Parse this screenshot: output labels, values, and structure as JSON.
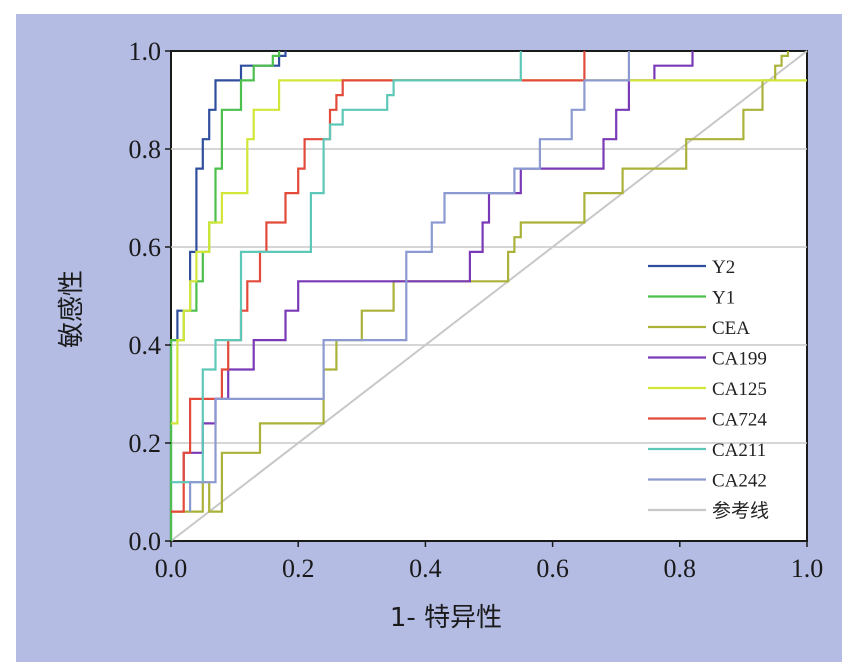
{
  "chart_data": {
    "type": "line",
    "xlabel": "1- 特异性",
    "ylabel": "敏感性",
    "xlim": [
      0,
      1
    ],
    "ylim": [
      0,
      1
    ],
    "xticks": [
      "0.0",
      "0.2",
      "0.4",
      "0.6",
      "0.8",
      "1.0"
    ],
    "yticks": [
      "0.0",
      "0.2",
      "0.4",
      "0.6",
      "0.8",
      "1.0"
    ],
    "grid": "horizontal",
    "legend_position": "right",
    "series": [
      {
        "name": "Y2",
        "color": "#2f4f9e",
        "x": [
          0,
          0,
          0.01,
          0.01,
          0.03,
          0.03,
          0.04,
          0.04,
          0.05,
          0.05,
          0.06,
          0.06,
          0.07,
          0.07,
          0.11,
          0.11,
          0.17,
          0.17,
          0.18,
          0.18
        ],
        "y": [
          0,
          0.41,
          0.41,
          0.47,
          0.47,
          0.59,
          0.59,
          0.76,
          0.76,
          0.82,
          0.82,
          0.88,
          0.88,
          0.94,
          0.94,
          0.97,
          0.97,
          0.99,
          0.99,
          1.0
        ]
      },
      {
        "name": "Y1",
        "color": "#4cbf4c",
        "x": [
          0,
          0,
          0.02,
          0.02,
          0.04,
          0.04,
          0.05,
          0.05,
          0.06,
          0.06,
          0.07,
          0.07,
          0.08,
          0.08,
          0.11,
          0.11,
          0.13,
          0.13,
          0.16,
          0.16,
          0.17,
          0.17
        ],
        "y": [
          0,
          0.41,
          0.41,
          0.47,
          0.47,
          0.53,
          0.53,
          0.59,
          0.59,
          0.65,
          0.65,
          0.76,
          0.76,
          0.88,
          0.88,
          0.94,
          0.94,
          0.97,
          0.97,
          0.99,
          0.99,
          1.0
        ]
      },
      {
        "name": "CEA",
        "color": "#aab23a",
        "x": [
          0,
          0.05,
          0.05,
          0.06,
          0.06,
          0.08,
          0.08,
          0.14,
          0.14,
          0.24,
          0.24,
          0.26,
          0.26,
          0.3,
          0.3,
          0.35,
          0.35,
          0.53,
          0.53,
          0.54,
          0.54,
          0.55,
          0.55,
          0.65,
          0.65,
          0.71,
          0.71,
          0.81,
          0.81,
          0.9,
          0.9,
          0.93,
          0.93,
          0.95,
          0.95,
          0.96,
          0.96,
          0.97,
          0.97
        ],
        "y": [
          0.06,
          0.06,
          0.12,
          0.12,
          0.06,
          0.06,
          0.18,
          0.18,
          0.24,
          0.24,
          0.35,
          0.35,
          0.41,
          0.41,
          0.47,
          0.47,
          0.53,
          0.53,
          0.59,
          0.59,
          0.62,
          0.62,
          0.65,
          0.65,
          0.71,
          0.71,
          0.76,
          0.76,
          0.82,
          0.82,
          0.88,
          0.88,
          0.94,
          0.94,
          0.97,
          0.97,
          0.99,
          0.99,
          1.0
        ]
      },
      {
        "name": "CA199",
        "color": "#7a3ab8",
        "x": [
          0.02,
          0.02,
          0.05,
          0.05,
          0.07,
          0.07,
          0.09,
          0.09,
          0.13,
          0.13,
          0.18,
          0.18,
          0.2,
          0.2,
          0.25,
          0.25,
          0.47,
          0.47,
          0.49,
          0.49,
          0.5,
          0.5,
          0.55,
          0.55,
          0.68,
          0.68,
          0.7,
          0.7,
          0.72,
          0.72,
          0.76,
          0.76,
          0.82,
          0.82
        ],
        "y": [
          0.12,
          0.18,
          0.18,
          0.24,
          0.24,
          0.29,
          0.29,
          0.35,
          0.35,
          0.41,
          0.41,
          0.47,
          0.47,
          0.53,
          0.53,
          0.53,
          0.53,
          0.59,
          0.59,
          0.65,
          0.65,
          0.71,
          0.71,
          0.76,
          0.76,
          0.82,
          0.82,
          0.88,
          0.88,
          0.94,
          0.94,
          0.97,
          0.97,
          1.0
        ]
      },
      {
        "name": "CA125",
        "color": "#d2e63a",
        "x": [
          0,
          0.01,
          0.01,
          0.02,
          0.02,
          0.03,
          0.03,
          0.04,
          0.04,
          0.06,
          0.06,
          0.08,
          0.08,
          0.12,
          0.12,
          0.13,
          0.13,
          0.17,
          0.17,
          0.98,
          0.98,
          1.0
        ],
        "y": [
          0.24,
          0.24,
          0.41,
          0.41,
          0.47,
          0.47,
          0.53,
          0.53,
          0.59,
          0.59,
          0.65,
          0.65,
          0.71,
          0.71,
          0.82,
          0.82,
          0.88,
          0.88,
          0.94,
          0.94,
          0.94,
          0.94
        ]
      },
      {
        "name": "CA724",
        "color": "#e24a3a",
        "x": [
          0,
          0.02,
          0.02,
          0.03,
          0.03,
          0.08,
          0.08,
          0.09,
          0.09,
          0.11,
          0.11,
          0.12,
          0.12,
          0.14,
          0.14,
          0.15,
          0.15,
          0.18,
          0.18,
          0.2,
          0.2,
          0.21,
          0.21,
          0.25,
          0.25,
          0.26,
          0.26,
          0.27,
          0.27,
          0.28,
          0.28,
          0.65,
          0.65
        ],
        "y": [
          0.06,
          0.06,
          0.18,
          0.18,
          0.29,
          0.29,
          0.35,
          0.35,
          0.41,
          0.41,
          0.47,
          0.47,
          0.53,
          0.53,
          0.59,
          0.59,
          0.65,
          0.65,
          0.71,
          0.71,
          0.76,
          0.76,
          0.82,
          0.82,
          0.88,
          0.88,
          0.91,
          0.91,
          0.94,
          0.94,
          0.94,
          0.94,
          1.0
        ]
      },
      {
        "name": "CA211",
        "color": "#5ec8b8",
        "x": [
          0,
          0.05,
          0.05,
          0.07,
          0.07,
          0.11,
          0.11,
          0.22,
          0.22,
          0.24,
          0.24,
          0.25,
          0.25,
          0.27,
          0.27,
          0.34,
          0.34,
          0.35,
          0.35,
          0.36,
          0.36,
          0.55,
          0.55
        ],
        "y": [
          0.12,
          0.12,
          0.35,
          0.35,
          0.41,
          0.41,
          0.59,
          0.59,
          0.71,
          0.71,
          0.82,
          0.82,
          0.85,
          0.85,
          0.88,
          0.88,
          0.91,
          0.91,
          0.94,
          0.94,
          0.94,
          0.94,
          1.0
        ]
      },
      {
        "name": "CA242",
        "color": "#8c9ad2",
        "x": [
          0.03,
          0.03,
          0.07,
          0.07,
          0.24,
          0.24,
          0.37,
          0.37,
          0.41,
          0.41,
          0.43,
          0.43,
          0.54,
          0.54,
          0.58,
          0.58,
          0.63,
          0.63,
          0.65,
          0.65,
          0.72,
          0.72
        ],
        "y": [
          0.06,
          0.12,
          0.12,
          0.29,
          0.29,
          0.41,
          0.41,
          0.59,
          0.59,
          0.65,
          0.65,
          0.71,
          0.71,
          0.76,
          0.76,
          0.82,
          0.82,
          0.88,
          0.88,
          0.94,
          0.94,
          1.0
        ]
      },
      {
        "name": "参考线",
        "color": "#c8c8c8",
        "x": [
          0,
          1
        ],
        "y": [
          0,
          1
        ]
      }
    ]
  }
}
